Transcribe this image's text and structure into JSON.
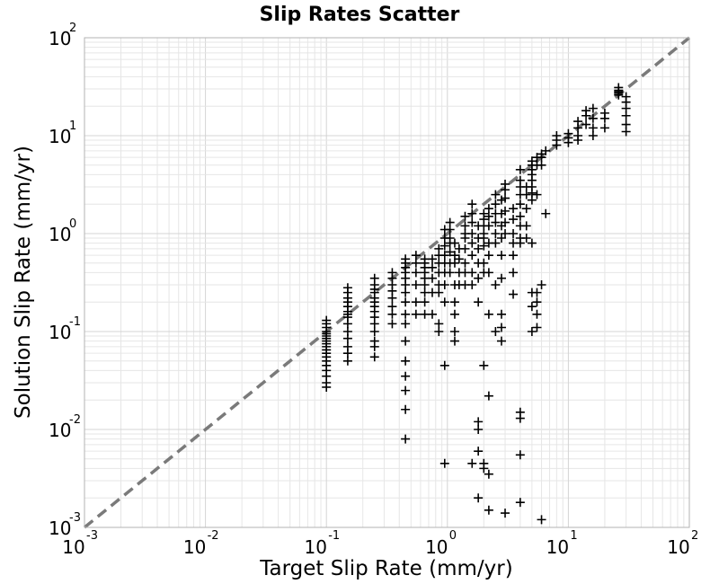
{
  "chart_data": {
    "type": "scatter",
    "title": "Slip Rates Scatter",
    "xlabel": "Target Slip Rate (mm/yr)",
    "ylabel": "Solution Slip Rate (mm/yr)",
    "x_scale": "log",
    "y_scale": "log",
    "xlim": [
      0.001,
      100
    ],
    "ylim": [
      0.001,
      100
    ],
    "x_ticks": [
      {
        "base": "10",
        "exp": "-3"
      },
      {
        "base": "10",
        "exp": "-2"
      },
      {
        "base": "10",
        "exp": "-1"
      },
      {
        "base": "10",
        "exp": "0"
      },
      {
        "base": "10",
        "exp": "1"
      },
      {
        "base": "10",
        "exp": "2"
      }
    ],
    "y_ticks": [
      {
        "base": "10",
        "exp": "-3"
      },
      {
        "base": "10",
        "exp": "-2"
      },
      {
        "base": "10",
        "exp": "-1"
      },
      {
        "base": "10",
        "exp": "0"
      },
      {
        "base": "10",
        "exp": "1"
      },
      {
        "base": "10",
        "exp": "2"
      }
    ],
    "grid": true,
    "marker": "plus",
    "colors": {
      "points": "#000000",
      "reference_line": "#7a7a7a",
      "grid": "#e6e6e6"
    },
    "reference_line": {
      "style": "dashed",
      "x": [
        0.001,
        100
      ],
      "y": [
        0.001,
        100
      ]
    },
    "points": [
      [
        0.1,
        0.12
      ],
      [
        0.1,
        0.11
      ],
      [
        0.1,
        0.1
      ],
      [
        0.1,
        0.095
      ],
      [
        0.1,
        0.09
      ],
      [
        0.1,
        0.085
      ],
      [
        0.1,
        0.08
      ],
      [
        0.1,
        0.075
      ],
      [
        0.1,
        0.07
      ],
      [
        0.1,
        0.065
      ],
      [
        0.1,
        0.06
      ],
      [
        0.1,
        0.055
      ],
      [
        0.1,
        0.05
      ],
      [
        0.1,
        0.045
      ],
      [
        0.1,
        0.04
      ],
      [
        0.1,
        0.035
      ],
      [
        0.1,
        0.03
      ],
      [
        0.1,
        0.027
      ],
      [
        0.1,
        0.13
      ],
      [
        0.15,
        0.28
      ],
      [
        0.15,
        0.25
      ],
      [
        0.15,
        0.22
      ],
      [
        0.15,
        0.2
      ],
      [
        0.15,
        0.18
      ],
      [
        0.15,
        0.16
      ],
      [
        0.15,
        0.15
      ],
      [
        0.15,
        0.14
      ],
      [
        0.15,
        0.12
      ],
      [
        0.15,
        0.1
      ],
      [
        0.15,
        0.085
      ],
      [
        0.15,
        0.07
      ],
      [
        0.15,
        0.06
      ],
      [
        0.15,
        0.05
      ],
      [
        0.25,
        0.35
      ],
      [
        0.25,
        0.3
      ],
      [
        0.25,
        0.27
      ],
      [
        0.25,
        0.25
      ],
      [
        0.25,
        0.22
      ],
      [
        0.25,
        0.2
      ],
      [
        0.25,
        0.18
      ],
      [
        0.25,
        0.16
      ],
      [
        0.25,
        0.14
      ],
      [
        0.25,
        0.12
      ],
      [
        0.25,
        0.1
      ],
      [
        0.25,
        0.08
      ],
      [
        0.25,
        0.07
      ],
      [
        0.25,
        0.055
      ],
      [
        0.35,
        0.4
      ],
      [
        0.35,
        0.35
      ],
      [
        0.35,
        0.3
      ],
      [
        0.35,
        0.26
      ],
      [
        0.35,
        0.22
      ],
      [
        0.35,
        0.18
      ],
      [
        0.35,
        0.15
      ],
      [
        0.35,
        0.12
      ],
      [
        0.45,
        0.55
      ],
      [
        0.45,
        0.5
      ],
      [
        0.45,
        0.45
      ],
      [
        0.45,
        0.4
      ],
      [
        0.45,
        0.35
      ],
      [
        0.45,
        0.3
      ],
      [
        0.45,
        0.25
      ],
      [
        0.45,
        0.2
      ],
      [
        0.45,
        0.15
      ],
      [
        0.45,
        0.12
      ],
      [
        0.45,
        0.08
      ],
      [
        0.45,
        0.05
      ],
      [
        0.45,
        0.035
      ],
      [
        0.45,
        0.025
      ],
      [
        0.45,
        0.016
      ],
      [
        0.45,
        0.008
      ],
      [
        0.55,
        0.6
      ],
      [
        0.55,
        0.5
      ],
      [
        0.55,
        0.4
      ],
      [
        0.55,
        0.3
      ],
      [
        0.55,
        0.2
      ],
      [
        0.55,
        0.15
      ],
      [
        0.65,
        0.55
      ],
      [
        0.65,
        0.5
      ],
      [
        0.65,
        0.45
      ],
      [
        0.65,
        0.4
      ],
      [
        0.65,
        0.35
      ],
      [
        0.65,
        0.3
      ],
      [
        0.65,
        0.25
      ],
      [
        0.65,
        0.2
      ],
      [
        0.65,
        0.15
      ],
      [
        0.75,
        0.55
      ],
      [
        0.75,
        0.45
      ],
      [
        0.75,
        0.35
      ],
      [
        0.75,
        0.25
      ],
      [
        0.75,
        0.15
      ],
      [
        0.85,
        0.7
      ],
      [
        0.85,
        0.6
      ],
      [
        0.85,
        0.5
      ],
      [
        0.85,
        0.4
      ],
      [
        0.85,
        0.3
      ],
      [
        0.85,
        0.25
      ],
      [
        0.85,
        0.12
      ],
      [
        0.85,
        0.1
      ],
      [
        0.95,
        1.1
      ],
      [
        0.95,
        0.9
      ],
      [
        0.95,
        0.75
      ],
      [
        0.95,
        0.6
      ],
      [
        0.95,
        0.5
      ],
      [
        0.95,
        0.4
      ],
      [
        0.95,
        0.3
      ],
      [
        0.95,
        0.2
      ],
      [
        0.95,
        0.0045
      ],
      [
        0.95,
        0.045
      ],
      [
        1.05,
        1.3
      ],
      [
        1.05,
        1.1
      ],
      [
        1.05,
        0.9
      ],
      [
        1.05,
        0.8
      ],
      [
        1.05,
        0.65
      ],
      [
        1.05,
        0.5
      ],
      [
        1.05,
        0.4
      ],
      [
        1.15,
        0.8
      ],
      [
        1.15,
        0.6
      ],
      [
        1.15,
        0.5
      ],
      [
        1.15,
        0.3
      ],
      [
        1.15,
        0.2
      ],
      [
        1.15,
        0.15
      ],
      [
        1.15,
        0.1
      ],
      [
        1.15,
        0.08
      ],
      [
        1.25,
        0.7
      ],
      [
        1.25,
        0.55
      ],
      [
        1.25,
        0.4
      ],
      [
        1.25,
        0.3
      ],
      [
        1.4,
        1.5
      ],
      [
        1.4,
        1.2
      ],
      [
        1.4,
        1.0
      ],
      [
        1.4,
        0.9
      ],
      [
        1.4,
        0.7
      ],
      [
        1.4,
        0.5
      ],
      [
        1.4,
        0.4
      ],
      [
        1.4,
        0.3
      ],
      [
        1.6,
        2.0
      ],
      [
        1.6,
        1.6
      ],
      [
        1.6,
        1.3
      ],
      [
        1.6,
        1.0
      ],
      [
        1.6,
        0.8
      ],
      [
        1.6,
        0.6
      ],
      [
        1.6,
        0.4
      ],
      [
        1.6,
        0.3
      ],
      [
        1.6,
        0.0045
      ],
      [
        1.8,
        1.2
      ],
      [
        1.8,
        0.9
      ],
      [
        1.8,
        0.7
      ],
      [
        1.8,
        0.5
      ],
      [
        1.8,
        0.35
      ],
      [
        1.8,
        0.2
      ],
      [
        1.8,
        0.012
      ],
      [
        1.8,
        0.01
      ],
      [
        1.8,
        0.006
      ],
      [
        1.8,
        0.002
      ],
      [
        2.0,
        1.6
      ],
      [
        2.0,
        1.4
      ],
      [
        2.0,
        1.2
      ],
      [
        2.0,
        1.0
      ],
      [
        2.0,
        0.9
      ],
      [
        2.0,
        0.75
      ],
      [
        2.0,
        0.5
      ],
      [
        2.0,
        0.4
      ],
      [
        2.0,
        0.045
      ],
      [
        2.0,
        0.0045
      ],
      [
        2.0,
        0.004
      ],
      [
        2.2,
        1.8
      ],
      [
        2.2,
        1.5
      ],
      [
        2.2,
        1.2
      ],
      [
        2.2,
        0.8
      ],
      [
        2.2,
        0.6
      ],
      [
        2.2,
        0.4
      ],
      [
        2.2,
        0.15
      ],
      [
        2.2,
        0.0035
      ],
      [
        2.2,
        0.022
      ],
      [
        2.2,
        0.0015
      ],
      [
        2.5,
        2.5
      ],
      [
        2.5,
        2.0
      ],
      [
        2.5,
        1.6
      ],
      [
        2.5,
        1.3
      ],
      [
        2.5,
        1.0
      ],
      [
        2.5,
        0.8
      ],
      [
        2.5,
        0.3
      ],
      [
        2.5,
        0.1
      ],
      [
        2.8,
        2.2
      ],
      [
        2.8,
        1.6
      ],
      [
        2.8,
        1.2
      ],
      [
        2.8,
        0.9
      ],
      [
        2.8,
        0.6
      ],
      [
        2.8,
        0.35
      ],
      [
        2.8,
        0.15
      ],
      [
        2.8,
        0.11
      ],
      [
        2.8,
        0.08
      ],
      [
        3.0,
        3.2
      ],
      [
        3.0,
        2.8
      ],
      [
        3.0,
        2.3
      ],
      [
        3.0,
        1.7
      ],
      [
        3.0,
        1.3
      ],
      [
        3.0,
        1.0
      ],
      [
        3.0,
        0.0014
      ],
      [
        3.5,
        1.8
      ],
      [
        3.5,
        1.4
      ],
      [
        3.5,
        1.0
      ],
      [
        3.5,
        0.8
      ],
      [
        3.5,
        0.6
      ],
      [
        3.5,
        0.4
      ],
      [
        3.5,
        0.24
      ],
      [
        4.0,
        4.5
      ],
      [
        4.0,
        3.5
      ],
      [
        4.0,
        3.0
      ],
      [
        4.0,
        2.5
      ],
      [
        4.0,
        2.0
      ],
      [
        4.0,
        1.5
      ],
      [
        4.0,
        1.2
      ],
      [
        4.0,
        0.9
      ],
      [
        4.0,
        0.8
      ],
      [
        4.0,
        0.015
      ],
      [
        4.0,
        0.013
      ],
      [
        4.0,
        0.0055
      ],
      [
        4.0,
        0.0018
      ],
      [
        4.5,
        3.0
      ],
      [
        4.5,
        2.5
      ],
      [
        4.5,
        1.8
      ],
      [
        4.5,
        1.2
      ],
      [
        4.5,
        0.9
      ],
      [
        5.0,
        5.5
      ],
      [
        5.0,
        5.0
      ],
      [
        5.0,
        4.5
      ],
      [
        5.0,
        4.0
      ],
      [
        5.0,
        3.5
      ],
      [
        5.0,
        3.0
      ],
      [
        5.0,
        2.6
      ],
      [
        5.0,
        2.2
      ],
      [
        5.0,
        0.8
      ],
      [
        5.0,
        0.25
      ],
      [
        5.0,
        0.18
      ],
      [
        5.0,
        0.1
      ],
      [
        5.5,
        6.0
      ],
      [
        5.5,
        5.0
      ],
      [
        5.5,
        2.5
      ],
      [
        5.5,
        0.25
      ],
      [
        5.5,
        0.2
      ],
      [
        5.5,
        0.15
      ],
      [
        5.5,
        0.11
      ],
      [
        6.0,
        6.5
      ],
      [
        6.0,
        6.0
      ],
      [
        6.0,
        5.0
      ],
      [
        6.0,
        0.3
      ],
      [
        6.0,
        0.0012
      ],
      [
        6.5,
        7.0
      ],
      [
        6.5,
        1.6
      ],
      [
        8.0,
        8.0
      ],
      [
        8.0,
        9.0
      ],
      [
        8.0,
        10.0
      ],
      [
        10.0,
        8.5
      ],
      [
        10.0,
        9.5
      ],
      [
        10.0,
        10.5
      ],
      [
        12.0,
        12.0
      ],
      [
        12.0,
        14.0
      ],
      [
        12.0,
        10.0
      ],
      [
        12.0,
        9.0
      ],
      [
        14.0,
        18.0
      ],
      [
        14.0,
        16.0
      ],
      [
        14.0,
        13.0
      ],
      [
        16.0,
        19.0
      ],
      [
        16.0,
        15.0
      ],
      [
        16.0,
        12.0
      ],
      [
        16.0,
        10.0
      ],
      [
        20.0,
        17.0
      ],
      [
        20.0,
        15.0
      ],
      [
        20.0,
        12.0
      ],
      [
        26.0,
        31.0
      ],
      [
        26.0,
        29.0
      ],
      [
        26.0,
        28.0
      ],
      [
        26.0,
        27.0
      ],
      [
        26.0,
        26.0
      ],
      [
        30.0,
        25.0
      ],
      [
        30.0,
        22.0
      ],
      [
        30.0,
        19.0
      ],
      [
        30.0,
        16.0
      ],
      [
        30.0,
        13.0
      ],
      [
        30.0,
        11.0
      ]
    ]
  }
}
